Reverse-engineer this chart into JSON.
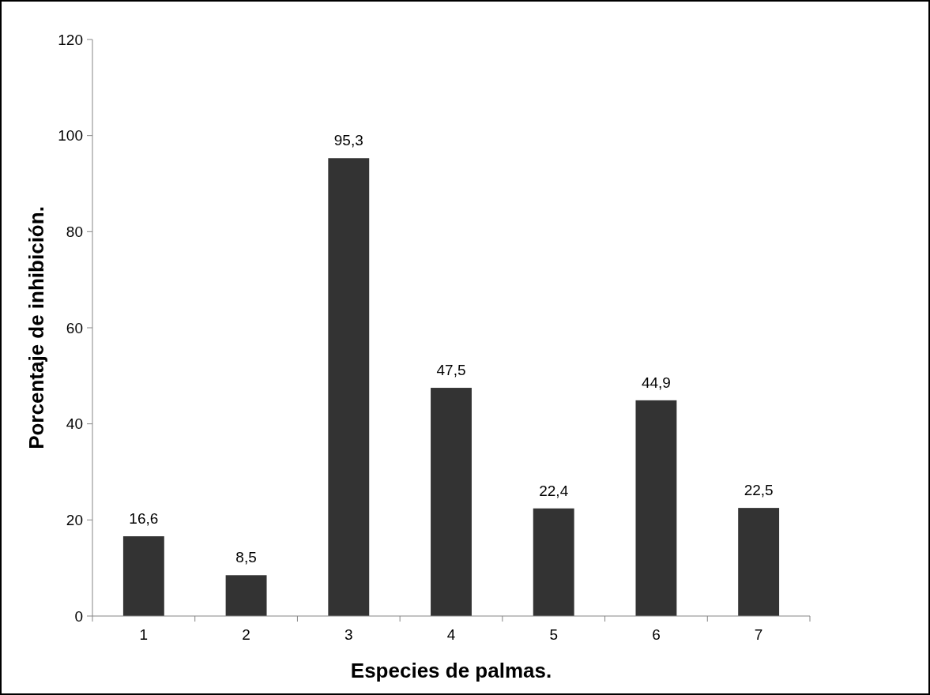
{
  "chart_data": {
    "type": "bar",
    "xlabel": "Especies de palmas.",
    "ylabel": "Porcentaje de inhibición.",
    "categories": [
      "1",
      "2",
      "3",
      "4",
      "5",
      "6",
      "7"
    ],
    "values": [
      16.6,
      8.5,
      95.3,
      47.5,
      22.4,
      44.9,
      22.5
    ],
    "value_labels": [
      "16,6",
      "8,5",
      "95,3",
      "47,5",
      "22,4",
      "44,9",
      "22,5"
    ],
    "color": "#333333",
    "ylim": [
      0,
      120
    ],
    "yticks": [
      0,
      20,
      40,
      60,
      80,
      100,
      120
    ],
    "grid": false
  }
}
